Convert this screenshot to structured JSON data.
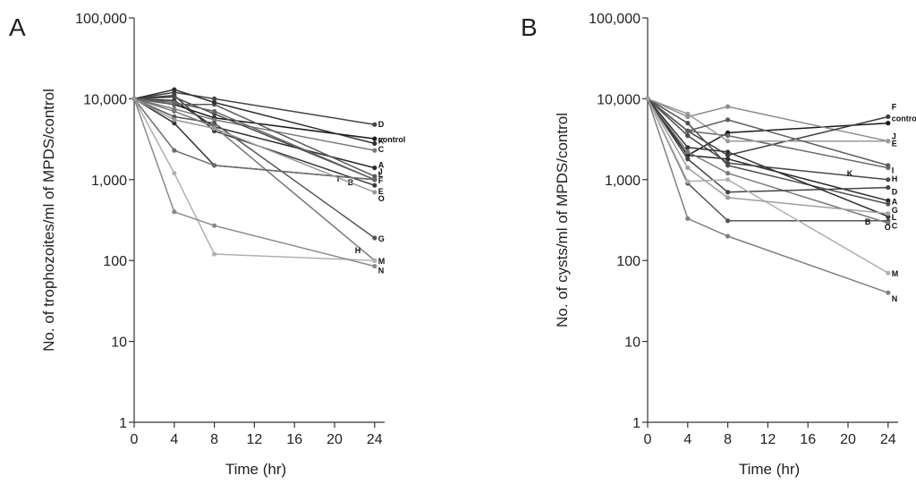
{
  "chart_data": [
    {
      "type": "line",
      "panel_label": "A",
      "xlabel": "Time (hr)",
      "ylabel": "No. of trophozoites/ml of MPDS/control",
      "yscale": "log",
      "xlim": [
        0,
        25
      ],
      "ylim": [
        1,
        100000
      ],
      "x_ticks": [
        0,
        4,
        8,
        12,
        16,
        20,
        24
      ],
      "x_tick_labels": [
        "0",
        "4",
        "8",
        "12",
        "16",
        "20",
        "24"
      ],
      "y_ticks": [
        1,
        10,
        100,
        1000,
        10000,
        100000
      ],
      "y_tick_labels": [
        "1",
        "10",
        "100",
        "1,000",
        "10,000",
        "100,000"
      ],
      "grid": false,
      "x": [
        0,
        4,
        8,
        24
      ],
      "series": [
        {
          "name": "control",
          "values": [
            10000,
            8500,
            5800,
            3200
          ],
          "color": "#1a1a1a"
        },
        {
          "name": "A",
          "values": [
            10000,
            9500,
            4500,
            1400
          ],
          "color": "#2b2b2b"
        },
        {
          "name": "B",
          "values": [
            10000,
            5000,
            1500,
            1000
          ],
          "color": "#333333"
        },
        {
          "name": "C",
          "values": [
            10000,
            7500,
            5500,
            2300
          ],
          "color": "#7a7a7a"
        },
        {
          "name": "D",
          "values": [
            10000,
            12000,
            10000,
            4800
          ],
          "color": "#444444"
        },
        {
          "name": "E",
          "values": [
            10000,
            11000,
            4000,
            850
          ],
          "color": "#3a3a3a"
        },
        {
          "name": "F",
          "values": [
            10000,
            10500,
            6500,
            1000
          ],
          "color": "#4a4a4a"
        },
        {
          "name": "G",
          "values": [
            10000,
            6000,
            5000,
            190
          ],
          "color": "#555555"
        },
        {
          "name": "H",
          "values": [
            10000,
            7000,
            4500,
            100
          ],
          "color": "#777777"
        },
        {
          "name": "I",
          "values": [
            10000,
            2300,
            1500,
            1000
          ],
          "color": "#6e6e6e"
        },
        {
          "name": "J",
          "values": [
            10000,
            8500,
            8500,
            1100
          ],
          "color": "#5a5a5a"
        },
        {
          "name": "K",
          "values": [
            10000,
            13000,
            9000,
            2800
          ],
          "color": "#303030"
        },
        {
          "name": "L",
          "values": [
            10000,
            9000,
            7000,
            1000
          ],
          "color": "#666666"
        },
        {
          "name": "M",
          "values": [
            10000,
            1200,
            120,
            100
          ],
          "color": "#b0b0b0"
        },
        {
          "name": "N",
          "values": [
            10000,
            400,
            270,
            85
          ],
          "color": "#8a8a8a"
        },
        {
          "name": "O",
          "values": [
            10000,
            5500,
            4300,
            700
          ],
          "color": "#999999"
        }
      ]
    },
    {
      "type": "line",
      "panel_label": "B",
      "xlabel": "Time (hr)",
      "ylabel": "No. of cysts/ml of MPDS/control",
      "yscale": "log",
      "xlim": [
        0,
        25
      ],
      "ylim": [
        1,
        100000
      ],
      "x_ticks": [
        0,
        4,
        8,
        12,
        16,
        20,
        24
      ],
      "x_tick_labels": [
        "0",
        "4",
        "8",
        "12",
        "16",
        "20",
        "24"
      ],
      "y_ticks": [
        1,
        10,
        100,
        1000,
        10000,
        100000
      ],
      "y_tick_labels": [
        "1",
        "10",
        "100",
        "1,000",
        "10,000",
        "100,000"
      ],
      "grid": false,
      "x": [
        0,
        4,
        8,
        24
      ],
      "series": [
        {
          "name": "control",
          "values": [
            10000,
            2000,
            3800,
            5000
          ],
          "color": "#1a1a1a"
        },
        {
          "name": "A",
          "values": [
            10000,
            2000,
            1800,
            550
          ],
          "color": "#2b2b2b"
        },
        {
          "name": "B",
          "values": [
            10000,
            900,
            310,
            310
          ],
          "color": "#555555"
        },
        {
          "name": "C",
          "values": [
            10000,
            2200,
            1200,
            290
          ],
          "color": "#7a7a7a"
        },
        {
          "name": "D",
          "values": [
            10000,
            1800,
            700,
            800
          ],
          "color": "#444444"
        },
        {
          "name": "E",
          "values": [
            10000,
            6000,
            8000,
            3000
          ],
          "color": "#8c8c8c"
        },
        {
          "name": "F",
          "values": [
            10000,
            4000,
            2000,
            6000
          ],
          "color": "#3c3c3c"
        },
        {
          "name": "G",
          "values": [
            10000,
            5000,
            1500,
            500
          ],
          "color": "#505050"
        },
        {
          "name": "H",
          "values": [
            10000,
            3500,
            1600,
            1000
          ],
          "color": "#4a4a4a"
        },
        {
          "name": "I",
          "values": [
            10000,
            4000,
            3500,
            1400
          ],
          "color": "#6a6a6a"
        },
        {
          "name": "J",
          "values": [
            10000,
            6500,
            3000,
            3000
          ],
          "color": "#9a9a9a"
        },
        {
          "name": "K",
          "values": [
            10000,
            4000,
            5500,
            1500
          ],
          "color": "#5c5c5c"
        },
        {
          "name": "L",
          "values": [
            10000,
            2500,
            2200,
            350
          ],
          "color": "#333333"
        },
        {
          "name": "M",
          "values": [
            10000,
            950,
            1000,
            70
          ],
          "color": "#b0b0b0"
        },
        {
          "name": "N",
          "values": [
            10000,
            330,
            200,
            40
          ],
          "color": "#808080"
        },
        {
          "name": "O",
          "values": [
            10000,
            1400,
            600,
            380
          ],
          "color": "#a0a0a0"
        }
      ]
    }
  ]
}
